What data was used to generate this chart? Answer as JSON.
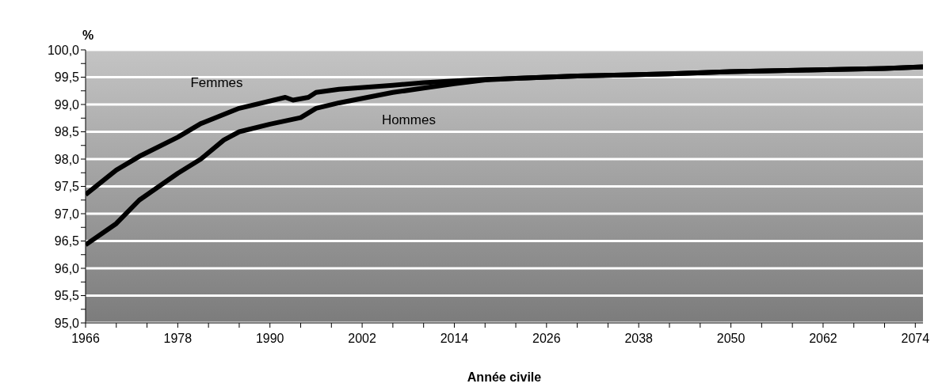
{
  "chart_data": {
    "type": "line",
    "ylabel": "%",
    "xlabel": "Année civile",
    "grid": "y",
    "xlim": [
      1966,
      2075
    ],
    "xticks": [
      1966,
      {
        "value": 1970,
        "label": null
      },
      {
        "value": 1974,
        "label": null
      },
      1978,
      {
        "value": 1982,
        "label": null
      },
      {
        "value": 1986,
        "label": null
      },
      1990,
      {
        "value": 1994,
        "label": null
      },
      {
        "value": 1998,
        "label": null
      },
      2002,
      {
        "value": 2006,
        "label": null
      },
      {
        "value": 2010,
        "label": null
      },
      2014,
      {
        "value": 2018,
        "label": null
      },
      {
        "value": 2022,
        "label": null
      },
      2026,
      {
        "value": 2030,
        "label": null
      },
      {
        "value": 2034,
        "label": null
      },
      2038,
      {
        "value": 2042,
        "label": null
      },
      {
        "value": 2046,
        "label": null
      },
      2050,
      {
        "value": 2054,
        "label": null
      },
      {
        "value": 2058,
        "label": null
      },
      2062,
      {
        "value": 2066,
        "label": null
      },
      {
        "value": 2070,
        "label": null
      },
      2074
    ],
    "ylim": [
      95,
      100
    ],
    "yticks": [
      {
        "value": 95,
        "label": "95,0"
      },
      {
        "value": 95.25,
        "label": null
      },
      {
        "value": 95.5,
        "label": "95,5"
      },
      {
        "value": 95.75,
        "label": null
      },
      {
        "value": 96,
        "label": "96,0"
      },
      {
        "value": 96.25,
        "label": null
      },
      {
        "value": 96.5,
        "label": "96,5"
      },
      {
        "value": 96.75,
        "label": null
      },
      {
        "value": 97,
        "label": "97,0"
      },
      {
        "value": 97.25,
        "label": null
      },
      {
        "value": 97.5,
        "label": "97,5"
      },
      {
        "value": 97.75,
        "label": null
      },
      {
        "value": 98,
        "label": "98,0"
      },
      {
        "value": 98.25,
        "label": null
      },
      {
        "value": 98.5,
        "label": "98,5"
      },
      {
        "value": 98.75,
        "label": null
      },
      {
        "value": 99,
        "label": "99,0"
      },
      {
        "value": 99.25,
        "label": null
      },
      {
        "value": 99.5,
        "label": "99,5"
      },
      {
        "value": 99.75,
        "label": null
      },
      {
        "value": 100,
        "label": "100,0"
      }
    ],
    "series": [
      {
        "name": "Femmes",
        "color": "#000000",
        "x": [
          1966,
          1970,
          1973,
          1978,
          1981,
          1986,
          1992,
          1993,
          1995,
          1996,
          1999,
          2006,
          2010,
          2014,
          2018,
          2022,
          2026,
          2030,
          2036,
          2042,
          2050,
          2060,
          2070,
          2075
        ],
        "values": [
          97.35,
          97.8,
          98.05,
          98.4,
          98.65,
          98.93,
          99.13,
          99.08,
          99.13,
          99.22,
          99.28,
          99.35,
          99.4,
          99.43,
          99.46,
          99.48,
          99.5,
          99.52,
          99.54,
          99.56,
          99.6,
          99.63,
          99.66,
          99.69
        ]
      },
      {
        "name": "Hommes",
        "color": "#000000",
        "x": [
          1966,
          1970,
          1973,
          1978,
          1981,
          1984,
          1986,
          1990,
          1994,
          1996,
          1999,
          2006,
          2010,
          2014,
          2018,
          2022,
          2026,
          2030,
          2036,
          2042,
          2050,
          2060,
          2070,
          2075
        ],
        "values": [
          96.43,
          96.82,
          97.25,
          97.74,
          98.0,
          98.35,
          98.5,
          98.64,
          98.76,
          98.93,
          99.03,
          99.22,
          99.3,
          99.38,
          99.45,
          99.48,
          99.5,
          99.52,
          99.54,
          99.56,
          99.6,
          99.63,
          99.66,
          99.69
        ]
      }
    ]
  }
}
